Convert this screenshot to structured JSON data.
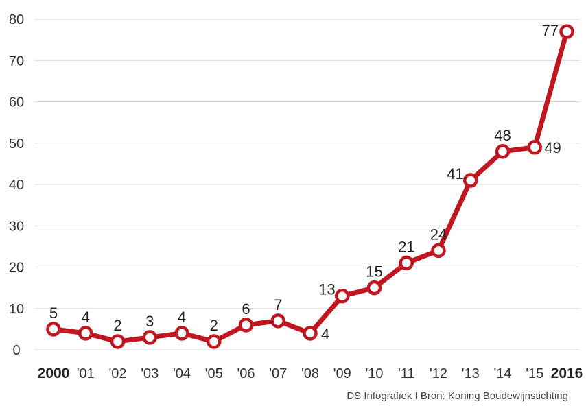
{
  "chart_data": {
    "type": "line",
    "categories": [
      "2000",
      "'01",
      "'02",
      "'03",
      "'04",
      "'05",
      "'06",
      "'07",
      "'08",
      "'09",
      "'10",
      "'11",
      "'12",
      "'13",
      "'14",
      "'15",
      "2016"
    ],
    "bold_categories": [
      "2000",
      "2016"
    ],
    "values": [
      5,
      4,
      2,
      3,
      4,
      2,
      6,
      7,
      4,
      13,
      15,
      21,
      24,
      41,
      48,
      49,
      77
    ],
    "ylim": [
      0,
      80
    ],
    "yticks": [
      0,
      10,
      20,
      30,
      40,
      50,
      60,
      70,
      80
    ],
    "grid": true,
    "title": "",
    "xlabel": "",
    "ylabel": ""
  },
  "colors": {
    "line": "#c0161f",
    "marker_fill": "#ffffff",
    "grid": "#d9d9d9"
  },
  "source": "DS Infografiek I Bron: Koning Boudewijnstichting"
}
